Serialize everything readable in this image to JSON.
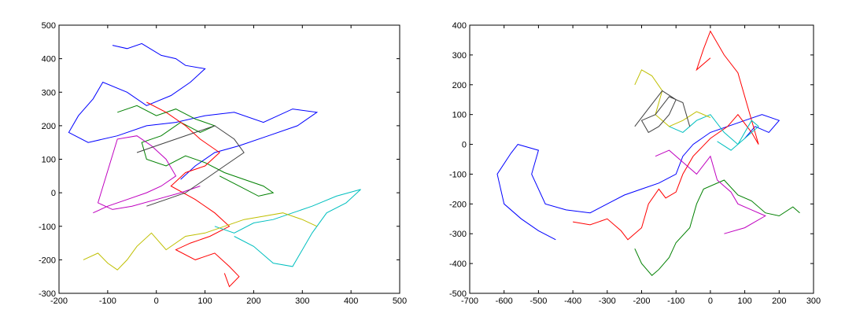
{
  "chart_data": [
    {
      "type": "line",
      "xlim": [
        -200,
        500
      ],
      "xticks": [
        -200,
        -100,
        0,
        100,
        200,
        300,
        400,
        500
      ],
      "ylim": [
        -300,
        500
      ],
      "yticks": [
        -300,
        -200,
        -100,
        0,
        100,
        200,
        300,
        400,
        500
      ],
      "series": [
        {
          "color": "#0000ff",
          "x": [
            -90,
            -60,
            -30,
            10,
            40,
            60,
            100,
            70,
            30,
            -20,
            -60,
            -110,
            -130,
            -160,
            -180,
            -140,
            -80,
            -20,
            40,
            100,
            160,
            220,
            280,
            330,
            290,
            230,
            170,
            120,
            80,
            50
          ],
          "values": [
            440,
            430,
            445,
            410,
            400,
            380,
            370,
            330,
            290,
            260,
            300,
            330,
            280,
            230,
            180,
            150,
            170,
            200,
            210,
            230,
            240,
            210,
            250,
            240,
            200,
            170,
            140,
            120,
            80,
            40
          ]
        },
        {
          "color": "#008000",
          "x": [
            -80,
            -40,
            0,
            40,
            80,
            120,
            90,
            50,
            10,
            -30,
            -20,
            20,
            60,
            100,
            140,
            180,
            220,
            240,
            210,
            170,
            130
          ],
          "values": [
            240,
            260,
            230,
            250,
            220,
            200,
            180,
            210,
            170,
            150,
            100,
            80,
            110,
            90,
            60,
            40,
            20,
            0,
            -10,
            20,
            50
          ]
        },
        {
          "color": "#ff0000",
          "x": [
            -20,
            20,
            60,
            90,
            130,
            100,
            60,
            30,
            80,
            120,
            150,
            110,
            70,
            40,
            80,
            120,
            150,
            170,
            150,
            140
          ],
          "values": [
            270,
            240,
            200,
            160,
            120,
            80,
            60,
            20,
            -20,
            -60,
            -100,
            -130,
            -150,
            -170,
            -200,
            -180,
            -220,
            -250,
            -280,
            -240
          ]
        },
        {
          "color": "#00bfbf",
          "x": [
            120,
            160,
            200,
            240,
            280,
            320,
            370,
            420,
            390,
            350,
            320,
            300,
            280,
            240,
            200,
            160
          ],
          "values": [
            -100,
            -120,
            -90,
            -80,
            -60,
            -40,
            -10,
            10,
            -30,
            -60,
            -120,
            -170,
            -220,
            -210,
            -160,
            -130
          ]
        },
        {
          "color": "#bf00bf",
          "x": [
            -130,
            -100,
            -60,
            -20,
            10,
            40,
            20,
            -10,
            -40,
            -80,
            -120,
            -90,
            -50,
            0,
            50,
            90
          ],
          "values": [
            -60,
            -40,
            -20,
            0,
            20,
            50,
            100,
            140,
            170,
            160,
            -30,
            -50,
            -40,
            -20,
            0,
            20
          ]
        },
        {
          "color": "#bfbf00",
          "x": [
            -150,
            -120,
            -100,
            -80,
            -60,
            -40,
            -10,
            20,
            60,
            100,
            140,
            180,
            220,
            260,
            300,
            330
          ],
          "values": [
            -200,
            -180,
            -210,
            -230,
            -200,
            -160,
            -120,
            -170,
            -130,
            -120,
            -100,
            -80,
            -70,
            -60,
            -80,
            -100
          ]
        },
        {
          "color": "#404040",
          "x": [
            -40,
            0,
            40,
            80,
            120,
            160,
            180,
            140,
            100,
            60,
            20,
            -20
          ],
          "values": [
            120,
            140,
            160,
            180,
            200,
            160,
            120,
            80,
            40,
            0,
            -20,
            -40
          ]
        }
      ]
    },
    {
      "type": "line",
      "xlim": [
        -700,
        300
      ],
      "xticks": [
        -700,
        -600,
        -500,
        -400,
        -300,
        -200,
        -100,
        0,
        100,
        200,
        300
      ],
      "ylim": [
        -500,
        400
      ],
      "yticks": [
        -500,
        -400,
        -300,
        -200,
        -100,
        0,
        100,
        200,
        300,
        400
      ],
      "series": [
        {
          "color": "#0000ff",
          "x": [
            -450,
            -500,
            -550,
            -600,
            -620,
            -580,
            -560,
            -500,
            -520,
            -480,
            -420,
            -350,
            -300,
            -250,
            -200,
            -150,
            -100,
            -80,
            -50,
            0,
            50,
            100,
            150,
            200,
            170,
            130,
            100
          ],
          "values": [
            -320,
            -290,
            -250,
            -200,
            -100,
            -30,
            0,
            -20,
            -100,
            -200,
            -220,
            -230,
            -200,
            -170,
            -150,
            -130,
            -100,
            -40,
            0,
            40,
            60,
            80,
            100,
            80,
            40,
            60,
            20
          ]
        },
        {
          "color": "#ff0000",
          "x": [
            -400,
            -350,
            -300,
            -260,
            -240,
            -200,
            -180,
            -150,
            -130,
            -100,
            -80,
            -50,
            0,
            50,
            80,
            120,
            140,
            80,
            40,
            0,
            -20,
            -40,
            0
          ],
          "values": [
            -260,
            -270,
            -250,
            -290,
            -320,
            -280,
            -200,
            -150,
            -180,
            -160,
            -100,
            -40,
            20,
            60,
            100,
            40,
            0,
            240,
            300,
            380,
            320,
            250,
            290
          ]
        },
        {
          "color": "#008000",
          "x": [
            -220,
            -200,
            -170,
            -150,
            -120,
            -100,
            -60,
            -40,
            -20,
            40,
            80,
            120,
            160,
            200,
            240,
            260
          ],
          "values": [
            -350,
            -400,
            -440,
            -420,
            -380,
            -330,
            -280,
            -200,
            -150,
            -120,
            -170,
            -190,
            -230,
            -240,
            -210,
            -230
          ]
        },
        {
          "color": "#00bfbf",
          "x": [
            -120,
            -80,
            -40,
            0,
            40,
            80,
            120,
            140,
            100,
            60,
            20
          ],
          "values": [
            60,
            40,
            80,
            100,
            40,
            0,
            80,
            60,
            20,
            -20,
            10
          ]
        },
        {
          "color": "#bf00bf",
          "x": [
            -160,
            -120,
            -80,
            -40,
            0,
            20,
            60,
            80,
            120,
            160,
            100,
            40
          ],
          "values": [
            -40,
            -20,
            -60,
            -100,
            -40,
            -120,
            -160,
            -200,
            -220,
            -240,
            -280,
            -300
          ]
        },
        {
          "color": "#bfbf00",
          "x": [
            -220,
            -200,
            -170,
            -140,
            -160,
            -120,
            -80,
            -40,
            0
          ],
          "values": [
            200,
            250,
            230,
            180,
            100,
            60,
            80,
            110,
            90
          ]
        },
        {
          "color": "#404040",
          "x": [
            -220,
            -180,
            -140,
            -100,
            -120,
            -150,
            -180,
            -200,
            -160,
            -120,
            -80,
            -60
          ],
          "values": [
            60,
            120,
            180,
            150,
            100,
            60,
            40,
            80,
            100,
            160,
            140,
            60
          ]
        }
      ]
    }
  ]
}
